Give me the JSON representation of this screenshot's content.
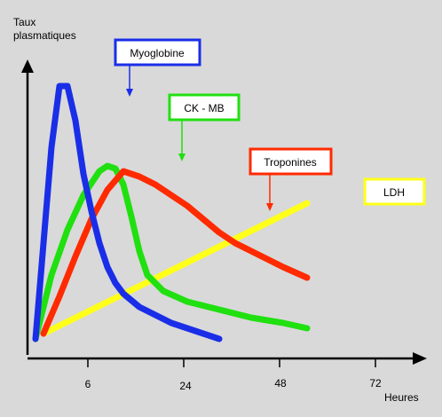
{
  "chart_data": {
    "type": "line",
    "ylabel_line1": "Taux",
    "ylabel_line2": "plasmatiques",
    "xlabel": "Heures",
    "x_ticks": [
      "6",
      "24",
      "48",
      "72"
    ],
    "series": [
      {
        "name": "Myoglobine",
        "color": "#1a2ee8",
        "x": [
          2,
          4,
          6,
          8,
          10,
          12,
          14,
          16,
          18,
          20,
          22,
          24,
          28,
          32,
          36,
          40,
          44,
          48
        ],
        "y": [
          0.0,
          0.36,
          0.72,
          0.95,
          0.95,
          0.82,
          0.62,
          0.48,
          0.36,
          0.27,
          0.21,
          0.17,
          0.12,
          0.09,
          0.06,
          0.04,
          0.02,
          0.0
        ]
      },
      {
        "name": "CK - MB",
        "color": "#20e010",
        "x": [
          2,
          6,
          10,
          14,
          18,
          20,
          22,
          24,
          26,
          28,
          30,
          34,
          40,
          48,
          56,
          64,
          70
        ],
        "y": [
          0.0,
          0.24,
          0.41,
          0.54,
          0.63,
          0.65,
          0.64,
          0.58,
          0.46,
          0.33,
          0.24,
          0.18,
          0.14,
          0.11,
          0.08,
          0.06,
          0.04
        ]
      },
      {
        "name": "Troponines",
        "color": "#ff2a00",
        "x": [
          4,
          8,
          12,
          16,
          20,
          24,
          28,
          32,
          36,
          40,
          44,
          48,
          52,
          56,
          60,
          64,
          70
        ],
        "y": [
          0.02,
          0.16,
          0.31,
          0.45,
          0.56,
          0.63,
          0.61,
          0.58,
          0.54,
          0.5,
          0.45,
          0.4,
          0.36,
          0.33,
          0.3,
          0.27,
          0.23
        ]
      },
      {
        "name": "LDH",
        "color": "#ffff1a",
        "x": [
          4,
          70
        ],
        "y": [
          0.02,
          0.51
        ]
      }
    ]
  }
}
